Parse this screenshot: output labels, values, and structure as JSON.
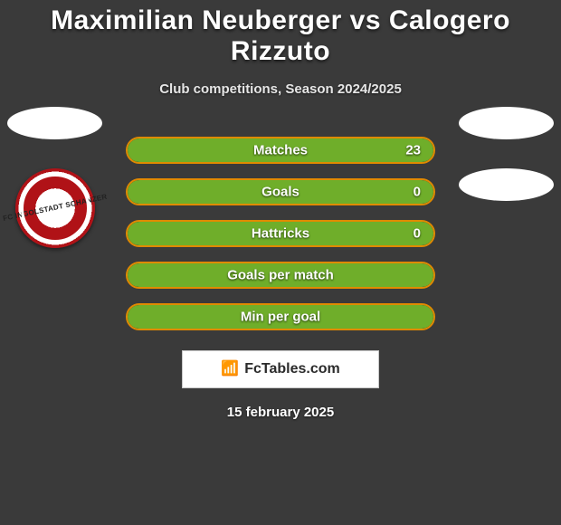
{
  "title": "Maximilian Neuberger vs Calogero Rizzuto",
  "subtitle": "Club competitions, Season 2024/2025",
  "date": "15 february 2025",
  "brand": {
    "text": "FcTables.com",
    "icon": "📶"
  },
  "left_badges": [
    {
      "type": "ellipse"
    },
    {
      "type": "crest",
      "text": "FC INGOLSTADT\\nSCHANZER"
    }
  ],
  "right_badges": [
    {
      "type": "ellipse"
    },
    {
      "type": "ellipse"
    }
  ],
  "colors": {
    "bar_border": "#e08a00",
    "bar_fill": "#6fae2a",
    "bar_bg": "transparent"
  },
  "bars": [
    {
      "label": "Matches",
      "value": "23",
      "fill_pct": 100
    },
    {
      "label": "Goals",
      "value": "0",
      "fill_pct": 100
    },
    {
      "label": "Hattricks",
      "value": "0",
      "fill_pct": 100
    },
    {
      "label": "Goals per match",
      "value": "",
      "fill_pct": 100
    },
    {
      "label": "Min per goal",
      "value": "",
      "fill_pct": 100
    }
  ]
}
